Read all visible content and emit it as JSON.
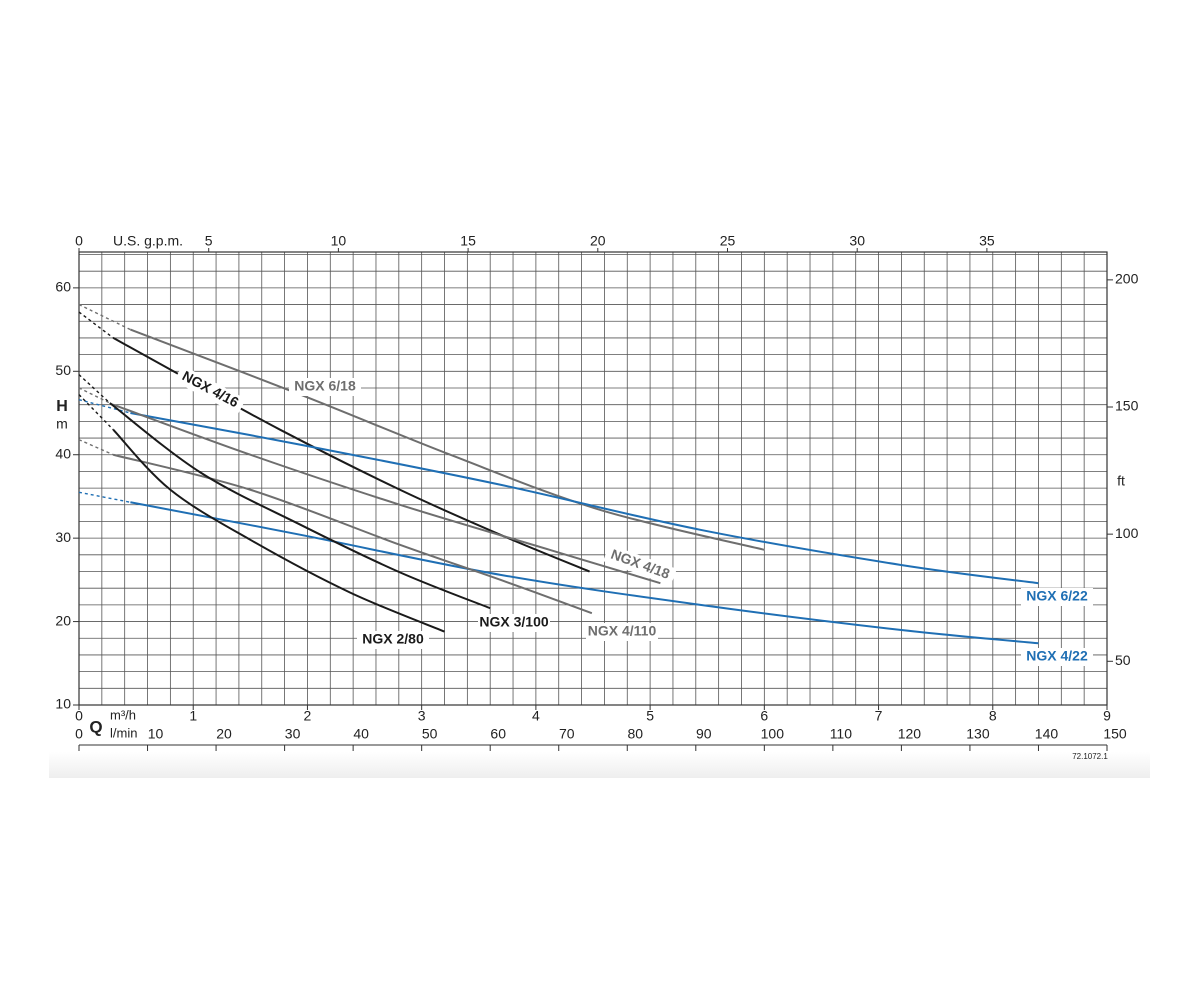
{
  "chart_data": {
    "type": "line",
    "x2_label": "U.S. g.p.m.",
    "y_label": "H",
    "y_unit": "m",
    "y2_label": "ft",
    "x_label": "Q",
    "x_unit": "m³/h",
    "x3_unit": "l/min",
    "code": "72.1072.1",
    "xlim": [
      0,
      9
    ],
    "xticks": [
      0,
      1,
      2,
      3,
      4,
      5,
      6,
      7,
      8,
      9
    ],
    "ylim": [
      10,
      64.3
    ],
    "yticks": [
      10,
      20,
      30,
      40,
      50,
      60
    ],
    "y2lim": [
      32.81,
      210.96
    ],
    "y2ticks": [
      50,
      100,
      150,
      200
    ],
    "x2lim": [
      0,
      39.63
    ],
    "x2ticks": [
      0,
      5,
      10,
      15,
      20,
      25,
      30,
      35
    ],
    "x3lim": [
      0,
      150
    ],
    "x3ticks": [
      0,
      10,
      20,
      30,
      40,
      50,
      60,
      70,
      80,
      90,
      100,
      110,
      120,
      130,
      140,
      150
    ],
    "grid": {
      "x_step": 0.2,
      "y_step": 2
    },
    "series": [
      {
        "name": "NGX 6/18",
        "color": "#6e6e6e",
        "dashed_points": 2,
        "x": [
          0,
          0.45,
          1.94,
          3.25,
          4.56,
          6.0
        ],
        "values": [
          58.0,
          55.0,
          47.2,
          40.0,
          33.4,
          28.6
        ]
      },
      {
        "name": "NGX 4/16",
        "color": "#1a1a1a",
        "dashed_points": 2,
        "x": [
          0,
          0.3,
          0.88,
          1.76,
          2.81,
          3.69,
          4.47
        ],
        "values": [
          57.1,
          54.0,
          49.6,
          43.0,
          35.8,
          30.4,
          26.0
        ]
      },
      {
        "name": "NGX 6/22",
        "color": "#1f6fb4",
        "dashed_points": 2,
        "x": [
          0,
          0.45,
          1.94,
          3.69,
          5.44,
          7.19,
          8.4
        ],
        "values": [
          46.6,
          45.0,
          41.2,
          36.4,
          31.0,
          26.8,
          24.6
        ]
      },
      {
        "name": "NGX 4/22",
        "color": "#1f6fb4",
        "dashed_points": 2,
        "x": [
          0,
          0.45,
          1.94,
          3.69,
          5.44,
          7.19,
          8.4
        ],
        "values": [
          35.5,
          34.3,
          30.4,
          25.6,
          22.0,
          19.0,
          17.4
        ]
      },
      {
        "name": "NGX 4/18",
        "color": "#6e6e6e",
        "dashed_points": 2,
        "x": [
          0,
          0.3,
          1.5,
          2.81,
          4.12,
          5.09
        ],
        "values": [
          48.0,
          46.0,
          40.0,
          34.0,
          28.6,
          24.6
        ]
      },
      {
        "name": "NGX 4/110",
        "color": "#6e6e6e",
        "dashed_points": 2,
        "x": [
          0,
          0.3,
          1.5,
          2.81,
          3.69,
          4.49
        ],
        "values": [
          41.8,
          40.0,
          35.8,
          29.2,
          25.0,
          21.0
        ]
      },
      {
        "name": "NGX 3/100",
        "color": "#1a1a1a",
        "dashed_points": 2,
        "x": [
          0,
          0.27,
          1.06,
          1.94,
          2.81,
          3.6
        ],
        "values": [
          49.6,
          46.2,
          37.9,
          31.6,
          25.9,
          21.6
        ]
      },
      {
        "name": "NGX 2/80",
        "color": "#1a1a1a",
        "dashed_points": 2,
        "x": [
          0,
          0.3,
          0.8,
          1.5,
          2.37,
          3.2
        ],
        "values": [
          47.2,
          43.0,
          35.8,
          29.8,
          23.5,
          18.8
        ]
      }
    ]
  }
}
